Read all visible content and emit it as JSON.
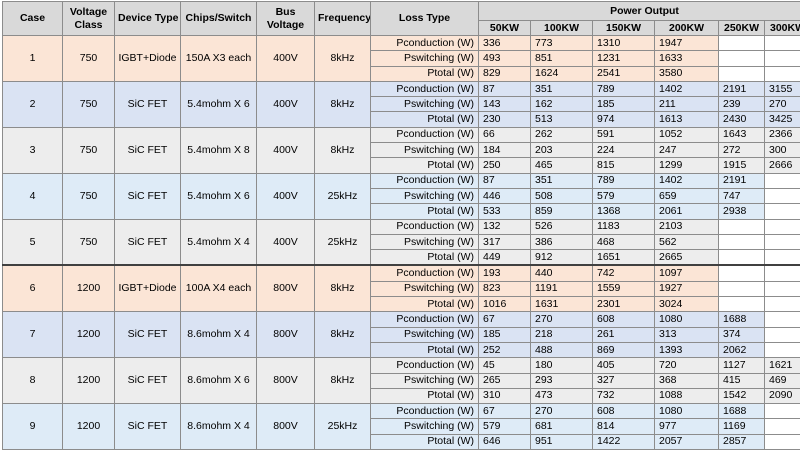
{
  "header": {
    "case": "Case",
    "voltage_class": "Voltage Class",
    "device_type": "Device Type",
    "chips_switch": "Chips/Switch",
    "bus_voltage": "Bus Voltage",
    "frequency": "Frequency",
    "loss_type": "Loss Type",
    "power_output": "Power Output",
    "power_levels": [
      "50KW",
      "100KW",
      "150KW",
      "200KW",
      "250KW",
      "300KW"
    ]
  },
  "cases": [
    {
      "case": "1",
      "voltage": "750",
      "device": "IGBT+Diode",
      "chips": "150A X3 each",
      "bus": "400V",
      "freq": "8kHz",
      "color": "orange",
      "rows": [
        {
          "loss": "Pconduction (W)",
          "values": [
            "336",
            "773",
            "1310",
            "1947",
            "",
            ""
          ]
        },
        {
          "loss": "Pswitching (W)",
          "values": [
            "493",
            "851",
            "1231",
            "1633",
            "",
            ""
          ]
        },
        {
          "loss": "Ptotal (W)",
          "values": [
            "829",
            "1624",
            "2541",
            "3580",
            "",
            ""
          ]
        }
      ]
    },
    {
      "case": "2",
      "voltage": "750",
      "device": "SiC FET",
      "chips": "5.4mohm X 6",
      "bus": "400V",
      "freq": "8kHz",
      "color": "blue",
      "rows": [
        {
          "loss": "Pconduction (W)",
          "values": [
            "87",
            "351",
            "789",
            "1402",
            "2191",
            "3155"
          ]
        },
        {
          "loss": "Pswitching (W)",
          "values": [
            "143",
            "162",
            "185",
            "211",
            "239",
            "270"
          ]
        },
        {
          "loss": "Ptotal (W)",
          "values": [
            "230",
            "513",
            "974",
            "1613",
            "2430",
            "3425"
          ]
        }
      ]
    },
    {
      "case": "3",
      "voltage": "750",
      "device": "SiC FET",
      "chips": "5.4mohm X 8",
      "bus": "400V",
      "freq": "8kHz",
      "color": "gray",
      "rows": [
        {
          "loss": "Pconduction (W)",
          "values": [
            "66",
            "262",
            "591",
            "1052",
            "1643",
            "2366"
          ]
        },
        {
          "loss": "Pswitching (W)",
          "values": [
            "184",
            "203",
            "224",
            "247",
            "272",
            "300"
          ]
        },
        {
          "loss": "Ptotal (W)",
          "values": [
            "250",
            "465",
            "815",
            "1299",
            "1915",
            "2666"
          ]
        }
      ]
    },
    {
      "case": "4",
      "voltage": "750",
      "device": "SiC FET",
      "chips": "5.4mohm X 6",
      "bus": "400V",
      "freq": "25kHz",
      "color": "lblue",
      "rows": [
        {
          "loss": "Pconduction (W)",
          "values": [
            "87",
            "351",
            "789",
            "1402",
            "2191",
            ""
          ]
        },
        {
          "loss": "Pswitching (W)",
          "values": [
            "446",
            "508",
            "579",
            "659",
            "747",
            ""
          ]
        },
        {
          "loss": "Ptotal (W)",
          "values": [
            "533",
            "859",
            "1368",
            "2061",
            "2938",
            ""
          ]
        }
      ]
    },
    {
      "case": "5",
      "voltage": "750",
      "device": "SiC FET",
      "chips": "5.4mohm X 4",
      "bus": "400V",
      "freq": "25kHz",
      "color": "gray",
      "rows": [
        {
          "loss": "Pconduction (W)",
          "values": [
            "132",
            "526",
            "1183",
            "2103",
            "",
            ""
          ]
        },
        {
          "loss": "Pswitching (W)",
          "values": [
            "317",
            "386",
            "468",
            "562",
            "",
            ""
          ]
        },
        {
          "loss": "Ptotal (W)",
          "values": [
            "449",
            "912",
            "1651",
            "2665",
            "",
            ""
          ]
        }
      ]
    },
    {
      "case": "6",
      "voltage": "1200",
      "device": "IGBT+Diode",
      "chips": "100A X4 each",
      "bus": "800V",
      "freq": "8kHz",
      "color": "orange",
      "rows": [
        {
          "loss": "Pconduction (W)",
          "values": [
            "193",
            "440",
            "742",
            "1097",
            "",
            ""
          ]
        },
        {
          "loss": "Pswitching (W)",
          "values": [
            "823",
            "1191",
            "1559",
            "1927",
            "",
            ""
          ]
        },
        {
          "loss": "Ptotal (W)",
          "values": [
            "1016",
            "1631",
            "2301",
            "3024",
            "",
            ""
          ]
        }
      ]
    },
    {
      "case": "7",
      "voltage": "1200",
      "device": "SiC FET",
      "chips": "8.6mohm X 4",
      "bus": "800V",
      "freq": "8kHz",
      "color": "blue",
      "rows": [
        {
          "loss": "Pconduction (W)",
          "values": [
            "67",
            "270",
            "608",
            "1080",
            "1688",
            ""
          ]
        },
        {
          "loss": "Pswitching (W)",
          "values": [
            "185",
            "218",
            "261",
            "313",
            "374",
            ""
          ]
        },
        {
          "loss": "Ptotal (W)",
          "values": [
            "252",
            "488",
            "869",
            "1393",
            "2062",
            ""
          ]
        }
      ]
    },
    {
      "case": "8",
      "voltage": "1200",
      "device": "SiC FET",
      "chips": "8.6mohm X 6",
      "bus": "800V",
      "freq": "8kHz",
      "color": "gray",
      "rows": [
        {
          "loss": "Pconduction (W)",
          "values": [
            "45",
            "180",
            "405",
            "720",
            "1127",
            "1621"
          ]
        },
        {
          "loss": "Pswitching (W)",
          "values": [
            "265",
            "293",
            "327",
            "368",
            "415",
            "469"
          ]
        },
        {
          "loss": "Ptotal (W)",
          "values": [
            "310",
            "473",
            "732",
            "1088",
            "1542",
            "2090"
          ]
        }
      ]
    },
    {
      "case": "9",
      "voltage": "1200",
      "device": "SiC FET",
      "chips": "8.6mohm X 4",
      "bus": "800V",
      "freq": "25kHz",
      "color": "lblue",
      "rows": [
        {
          "loss": "Pconduction (W)",
          "values": [
            "67",
            "270",
            "608",
            "1080",
            "1688",
            ""
          ]
        },
        {
          "loss": "Pswitching (W)",
          "values": [
            "579",
            "681",
            "814",
            "977",
            "1169",
            ""
          ]
        },
        {
          "loss": "Ptotal (W)",
          "values": [
            "646",
            "951",
            "1422",
            "2057",
            "2857",
            ""
          ]
        }
      ]
    }
  ]
}
